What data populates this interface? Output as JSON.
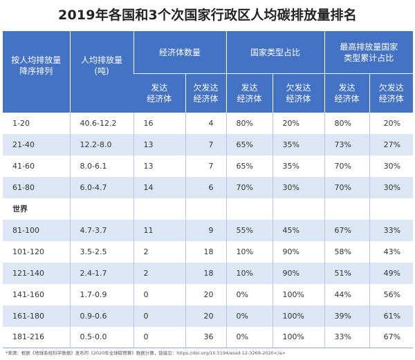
{
  "title": "2019年各国和3个次国家行政区人均碳排放量排名",
  "headers": {
    "rank": "按人均排放量\n降序排列",
    "per_capita": "人均排放量\n(吨)",
    "economy_count": "经济体数量",
    "type_share": "国家类型占比",
    "cumulative_share": "最高排放量国家\n类型累计占比",
    "developed": "发达\n经济体",
    "underdeveloped": "欠发达\n经济体"
  },
  "rows": [
    {
      "rank": "1-20",
      "per_capita": "40.6-12.2",
      "dev_count": "16",
      "undev_count": "4",
      "dev_share": "80%",
      "undev_share": "20%",
      "cum_dev": "80%",
      "cum_undev": "20%"
    },
    {
      "rank": "21-40",
      "per_capita": "12.2-8.0",
      "dev_count": "13",
      "undev_count": "7",
      "dev_share": "65%",
      "undev_share": "35%",
      "cum_dev": "73%",
      "cum_undev": "27%"
    },
    {
      "rank": "41-60",
      "per_capita": "8.0-6.1",
      "dev_count": "13",
      "undev_count": "7",
      "dev_share": "65%",
      "undev_share": "35%",
      "cum_dev": "70%",
      "cum_undev": "30%"
    },
    {
      "rank": "61-80",
      "per_capita": "6.0-4.7",
      "dev_count": "14",
      "undev_count": "6",
      "dev_share": "70%",
      "undev_share": "30%",
      "cum_dev": "70%",
      "cum_undev": "30%"
    },
    {
      "rank": "世界",
      "per_capita": "",
      "dev_count": "",
      "undev_count": "",
      "dev_share": "",
      "undev_share": "",
      "cum_dev": "",
      "cum_undev": ""
    },
    {
      "rank": "81-100",
      "per_capita": "4.7-3.7",
      "dev_count": "11",
      "undev_count": "9",
      "dev_share": "55%",
      "undev_share": "45%",
      "cum_dev": "67%",
      "cum_undev": "33%"
    },
    {
      "rank": "101-120",
      "per_capita": "3.5-2.5",
      "dev_count": "2",
      "undev_count": "18",
      "dev_share": "10%",
      "undev_share": "90%",
      "cum_dev": "58%",
      "cum_undev": "43%"
    },
    {
      "rank": "121-140",
      "per_capita": "2.4-1.7",
      "dev_count": "2",
      "undev_count": "18",
      "dev_share": "10%",
      "undev_share": "90%",
      "cum_dev": "51%",
      "cum_undev": "49%"
    },
    {
      "rank": "141-160",
      "per_capita": "1.7-0.9",
      "dev_count": "0",
      "undev_count": "20",
      "dev_share": "0%",
      "undev_share": "100%",
      "cum_dev": "44%",
      "cum_undev": "56%"
    },
    {
      "rank": "161-180",
      "per_capita": "0.9-0.6",
      "dev_count": "0",
      "undev_count": "20",
      "dev_share": "0%",
      "undev_share": "100%",
      "cum_dev": "39%",
      "cum_undev": "61%"
    },
    {
      "rank": "181-216",
      "per_capita": "0.5-0.0",
      "dev_count": "0",
      "undev_count": "36",
      "dev_share": "0%",
      "undev_share": "100%",
      "cum_dev": "33%",
      "cum_undev": "67%"
    }
  ],
  "source": "*来源：根据《地球系统科学数据》发布的《2020年全球碳预算》数据计算，链接见：https://doi.org/10.5194/essd-12-3269-2020</a>",
  "colors": {
    "header_bg": "#4472c4",
    "alt_row_bg": "#dce6f4",
    "header_text": "#ffffff"
  }
}
